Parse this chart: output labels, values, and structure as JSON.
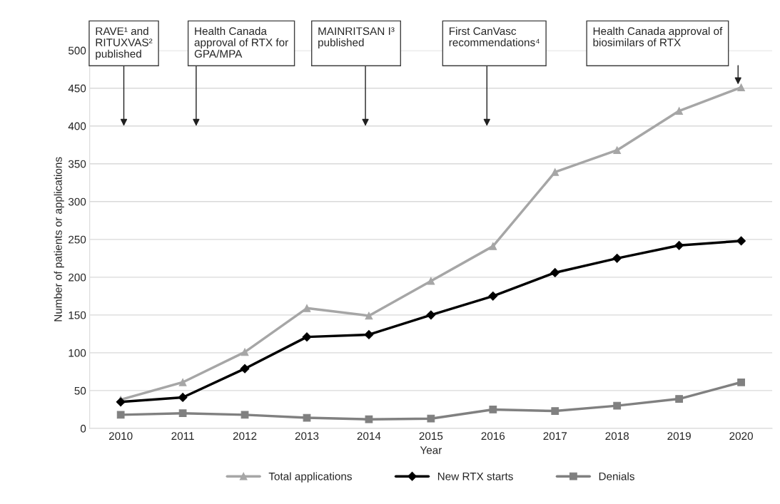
{
  "chart_data": {
    "type": "line",
    "xlabel": "Year",
    "ylabel": "Number of patients or applications",
    "categories": [
      "2010",
      "2011",
      "2012",
      "2013",
      "2014",
      "2015",
      "2016",
      "2017",
      "2018",
      "2019",
      "2020"
    ],
    "series": [
      {
        "name": "Total applications",
        "color": "#a6a6a6",
        "marker": "triangle",
        "values": [
          38,
          61,
          101,
          159,
          149,
          195,
          241,
          339,
          368,
          420,
          451
        ]
      },
      {
        "name": "New RTX starts",
        "color": "#000000",
        "marker": "diamond",
        "values": [
          35,
          41,
          79,
          121,
          124,
          150,
          175,
          206,
          225,
          242,
          248
        ]
      },
      {
        "name": "Denials",
        "color": "#808080",
        "marker": "square",
        "values": [
          18,
          20,
          18,
          14,
          12,
          13,
          25,
          23,
          30,
          39,
          61
        ]
      }
    ],
    "ylim": [
      0,
      500
    ],
    "yticks": [
      0,
      50,
      100,
      150,
      200,
      250,
      300,
      350,
      400,
      450,
      500
    ],
    "grid": "y",
    "legend": "bottom",
    "line_style": "solid",
    "annotations": [
      "RAVE¹ and\nRITUXVAS²\npublished",
      "Health Canada\napproval of RTX for\nGPA/MPA",
      "MAINRITSAN I³\npublished\n",
      "First CanVasc\nrecommendations⁴\n",
      "Health Canada approval of\nbiosimilars of RTX\n"
    ]
  }
}
